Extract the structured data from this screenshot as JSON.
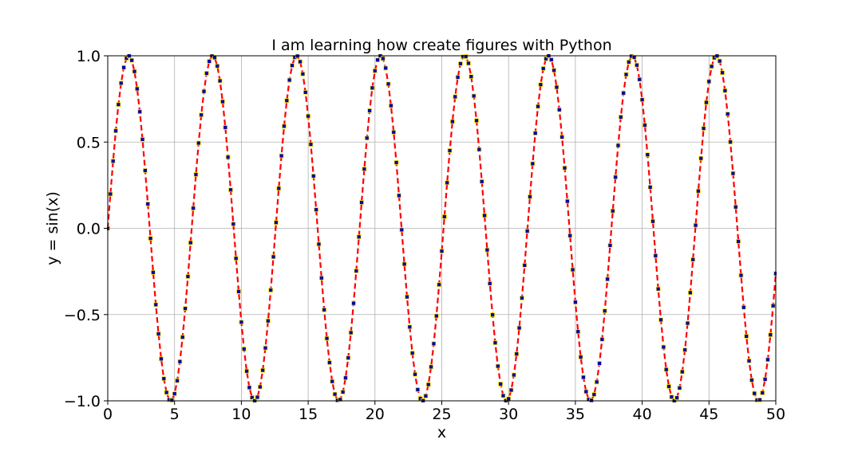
{
  "chart_data": {
    "type": "line",
    "title": "I am learning how create figures with Python",
    "xlabel": "x",
    "ylabel": "y = sin(x)",
    "xlim": [
      0,
      50
    ],
    "ylim": [
      -1.0,
      1.0
    ],
    "grid": true,
    "xticks": [
      0,
      5,
      10,
      15,
      20,
      25,
      30,
      35,
      40,
      45,
      50
    ],
    "xtick_labels": [
      "0",
      "5",
      "10",
      "15",
      "20",
      "25",
      "30",
      "35",
      "40",
      "45",
      "50"
    ],
    "yticks": [
      1.0,
      0.5,
      0.0,
      -0.5,
      -1.0
    ],
    "ytick_labels": [
      "1.0",
      "0.5",
      "0.0",
      "−0.5",
      "−1.0"
    ],
    "series": [
      {
        "function": "sin(x)",
        "x_start": 0,
        "x_end": 50,
        "x_step": 0.2,
        "line_color": "#ff0000",
        "line_style": "dashed",
        "marker": "square",
        "marker_face_color": "#0000aa",
        "marker_edge_color": "#ffe900"
      }
    ]
  }
}
